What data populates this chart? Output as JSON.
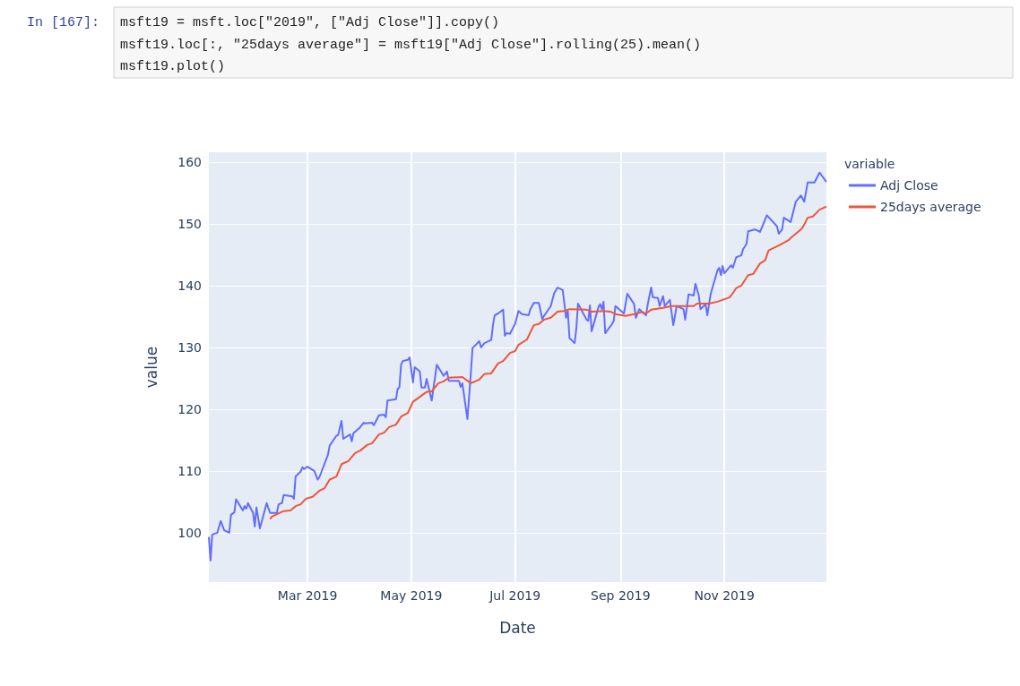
{
  "chart_data": {
    "type": "line",
    "xlabel": "Date",
    "ylabel": "value",
    "legend_title": "variable",
    "legend": "top right",
    "grid": true,
    "annotations": [
      "In [167]:",
      "msft19 = msft.loc[\"2019\", [\"Adj Close\"]].copy()",
      "msft19.loc[:, \"25days average\"] = msft19[\"Adj Close\"].rolling(25).mean()",
      "msft19.plot()"
    ],
    "xlim": [
      "2019-01-02",
      "2019-12-31"
    ],
    "xticks": [
      {
        "value": "2019-03-01",
        "label": "Mar 2019"
      },
      {
        "value": "2019-05-01",
        "label": "May 2019"
      },
      {
        "value": "2019-07-01",
        "label": "Jul 2019"
      },
      {
        "value": "2019-09-01",
        "label": "Sep 2019"
      },
      {
        "value": "2019-11-01",
        "label": "Nov 2019"
      }
    ],
    "ylim": [
      92,
      161.6
    ],
    "yticks": [
      100,
      110,
      120,
      130,
      140,
      150,
      160
    ],
    "series": [
      {
        "name": "Adj Close",
        "color": "#636efa",
        "x": [
          "2019-01-02",
          "2019-01-03",
          "2019-01-04",
          "2019-01-07",
          "2019-01-09",
          "2019-01-11",
          "2019-01-14",
          "2019-01-15",
          "2019-01-17",
          "2019-01-18",
          "2019-01-22",
          "2019-01-23",
          "2019-01-24",
          "2019-01-25",
          "2019-01-28",
          "2019-01-29",
          "2019-01-30",
          "2019-02-01",
          "2019-02-05",
          "2019-02-07",
          "2019-02-11",
          "2019-02-12",
          "2019-02-14",
          "2019-02-15",
          "2019-02-20",
          "2019-02-21",
          "2019-02-22",
          "2019-02-25",
          "2019-02-26",
          "2019-02-27",
          "2019-03-01",
          "2019-03-05",
          "2019-03-07",
          "2019-03-08",
          "2019-03-13",
          "2019-03-14",
          "2019-03-18",
          "2019-03-19",
          "2019-03-21",
          "2019-03-22",
          "2019-03-26",
          "2019-03-27",
          "2019-03-28",
          "2019-04-01",
          "2019-04-03",
          "2019-04-04",
          "2019-04-08",
          "2019-04-09",
          "2019-04-12",
          "2019-04-15",
          "2019-04-16",
          "2019-04-17",
          "2019-04-22",
          "2019-04-23",
          "2019-04-24",
          "2019-04-25",
          "2019-04-26",
          "2019-04-29",
          "2019-04-30",
          "2019-05-02",
          "2019-05-03",
          "2019-05-06",
          "2019-05-07",
          "2019-05-09",
          "2019-05-10",
          "2019-05-13",
          "2019-05-16",
          "2019-05-20",
          "2019-05-22",
          "2019-05-23",
          "2019-05-29",
          "2019-05-30",
          "2019-05-31",
          "2019-06-03",
          "2019-06-05",
          "2019-06-06",
          "2019-06-10",
          "2019-06-11",
          "2019-06-13",
          "2019-06-17",
          "2019-06-18",
          "2019-06-19",
          "2019-06-21",
          "2019-06-24",
          "2019-06-25",
          "2019-06-26",
          "2019-06-28",
          "2019-07-01",
          "2019-07-03",
          "2019-07-05",
          "2019-07-09",
          "2019-07-10",
          "2019-07-12",
          "2019-07-15",
          "2019-07-17",
          "2019-07-18",
          "2019-07-22",
          "2019-07-24",
          "2019-07-26",
          "2019-07-29",
          "2019-07-31",
          "2019-08-01",
          "2019-08-02",
          "2019-08-05",
          "2019-08-06",
          "2019-08-07",
          "2019-08-12",
          "2019-08-13",
          "2019-08-14",
          "2019-08-15",
          "2019-08-19",
          "2019-08-20",
          "2019-08-21",
          "2019-08-22",
          "2019-08-23",
          "2019-08-27",
          "2019-08-28",
          "2019-08-29",
          "2019-09-03",
          "2019-09-05",
          "2019-09-09",
          "2019-09-10",
          "2019-09-12",
          "2019-09-16",
          "2019-09-17",
          "2019-09-19",
          "2019-09-20",
          "2019-09-23",
          "2019-09-24",
          "2019-09-26",
          "2019-09-27",
          "2019-09-30",
          "2019-10-02",
          "2019-10-04",
          "2019-10-08",
          "2019-10-09",
          "2019-10-11",
          "2019-10-14",
          "2019-10-15",
          "2019-10-17",
          "2019-10-18",
          "2019-10-21",
          "2019-10-22",
          "2019-10-24",
          "2019-10-28",
          "2019-10-29",
          "2019-10-30",
          "2019-10-31",
          "2019-11-01",
          "2019-11-05",
          "2019-11-06",
          "2019-11-08",
          "2019-11-11",
          "2019-11-12",
          "2019-11-14",
          "2019-11-15",
          "2019-11-19",
          "2019-11-22",
          "2019-11-26",
          "2019-12-02",
          "2019-12-03",
          "2019-12-05",
          "2019-12-06",
          "2019-12-10",
          "2019-12-13",
          "2019-12-16",
          "2019-12-18",
          "2019-12-20",
          "2019-12-24",
          "2019-12-27",
          "2019-12-31"
        ],
        "values": [
          99.3,
          95.5,
          99.7,
          100,
          101.9,
          100.4,
          100,
          102.9,
          103.3,
          105.4,
          103.6,
          104.3,
          103.9,
          104.8,
          103.2,
          101,
          104.1,
          100.7,
          104.8,
          103.2,
          103.2,
          104.6,
          104.8,
          106.1,
          105.9,
          105.5,
          109.1,
          109.9,
          110.6,
          110.3,
          110.7,
          110,
          108.6,
          109,
          112.6,
          114.1,
          115.7,
          115.8,
          118.1,
          115.2,
          115.9,
          114.8,
          116.1,
          117.1,
          117.8,
          117.7,
          117.8,
          117.4,
          119,
          119.1,
          118.7,
          121.4,
          121.6,
          123.3,
          123.5,
          127.2,
          127.8,
          128,
          128.4,
          124.3,
          126.8,
          126.1,
          123.5,
          123.5,
          124.9,
          121.4,
          127.2,
          125.4,
          126.1,
          124.6,
          124.6,
          123.6,
          124.2,
          118.4,
          125.8,
          129.9,
          131,
          130,
          130.7,
          131.2,
          133.6,
          135.2,
          135.5,
          136.1,
          131.9,
          132.3,
          132.2,
          133.8,
          135.9,
          135.4,
          135.2,
          136.2,
          137.2,
          137.2,
          134.6,
          135.1,
          136.7,
          138.8,
          139.7,
          139.3,
          134.8,
          135.9,
          131.5,
          130.7,
          133,
          137.1,
          134.5,
          134.3,
          136.8,
          132.6,
          136.5,
          137,
          136.2,
          137.4,
          132.3,
          133.8,
          134.3,
          136.7,
          135.5,
          138.7,
          137,
          134.8,
          136.2,
          135.2,
          137,
          139.7,
          138.1,
          138,
          136.7,
          138.3,
          136.7,
          137.7,
          133.6,
          136.7,
          136.2,
          134.5,
          138.6,
          138.4,
          140.3,
          138.4,
          136.2,
          137,
          135.2,
          138.7,
          142.5,
          142.9,
          141.7,
          143.2,
          142,
          143.3,
          142.9,
          144.6,
          144.9,
          145.9,
          146.7,
          148.8,
          149.1,
          148.7,
          151.4,
          149.6,
          148.4,
          149.1,
          151,
          150.3,
          153.6,
          154.6,
          153.6,
          156.7,
          156.7,
          158.3,
          156.8
        ]
      },
      {
        "name": "25days average",
        "color": "#ef553b",
        "x": [
          "2019-02-07",
          "2019-02-08",
          "2019-02-15",
          "2019-02-19",
          "2019-02-22",
          "2019-02-25",
          "2019-02-28",
          "2019-03-04",
          "2019-03-08",
          "2019-03-11",
          "2019-03-14",
          "2019-03-18",
          "2019-03-21",
          "2019-03-25",
          "2019-03-29",
          "2019-04-01",
          "2019-04-05",
          "2019-04-08",
          "2019-04-12",
          "2019-04-15",
          "2019-04-18",
          "2019-04-22",
          "2019-04-25",
          "2019-04-29",
          "2019-05-02",
          "2019-05-06",
          "2019-05-10",
          "2019-05-13",
          "2019-05-17",
          "2019-05-20",
          "2019-05-23",
          "2019-05-31",
          "2019-06-05",
          "2019-06-10",
          "2019-06-13",
          "2019-06-17",
          "2019-06-21",
          "2019-06-24",
          "2019-06-28",
          "2019-07-01",
          "2019-07-03",
          "2019-07-08",
          "2019-07-12",
          "2019-07-15",
          "2019-07-18",
          "2019-07-22",
          "2019-07-26",
          "2019-07-30",
          "2019-08-02",
          "2019-08-12",
          "2019-08-15",
          "2019-08-22",
          "2019-08-26",
          "2019-08-29",
          "2019-09-04",
          "2019-09-09",
          "2019-09-13",
          "2019-09-16",
          "2019-09-19",
          "2019-09-26",
          "2019-10-01",
          "2019-10-14",
          "2019-10-16",
          "2019-10-23",
          "2019-10-28",
          "2019-11-04",
          "2019-11-05",
          "2019-11-08",
          "2019-11-11",
          "2019-11-15",
          "2019-11-18",
          "2019-11-22",
          "2019-11-25",
          "2019-11-27",
          "2019-12-03",
          "2019-12-09",
          "2019-12-10",
          "2019-12-16",
          "2019-12-17",
          "2019-12-20",
          "2019-12-23",
          "2019-12-27",
          "2019-12-31"
        ],
        "values": [
          102.2,
          102.6,
          103.5,
          103.6,
          104.3,
          104.6,
          105.5,
          105.8,
          106.8,
          107.2,
          108.6,
          109.1,
          111.1,
          111.6,
          112.9,
          113.3,
          114.2,
          114.5,
          115.9,
          116.2,
          117.1,
          117.5,
          118.8,
          119.4,
          121.2,
          122,
          122.8,
          122.9,
          124.2,
          124.5,
          125.1,
          125.2,
          124.2,
          124.8,
          125.7,
          125.8,
          127.4,
          127.8,
          129.1,
          129.4,
          130.4,
          131.3,
          133.6,
          133.8,
          134.5,
          134.8,
          135.8,
          135.9,
          136.2,
          136.1,
          135.8,
          135.9,
          135.8,
          135.4,
          135.1,
          135.4,
          135.7,
          135.5,
          136.1,
          136.4,
          136.7,
          136.7,
          137.1,
          137.1,
          137.4,
          138.1,
          138.4,
          139.6,
          140,
          141.7,
          141.9,
          143.6,
          144.1,
          145.7,
          146.5,
          147.4,
          147.7,
          149.1,
          149.4,
          151,
          151.2,
          152.3,
          152.8
        ]
      }
    ]
  }
}
